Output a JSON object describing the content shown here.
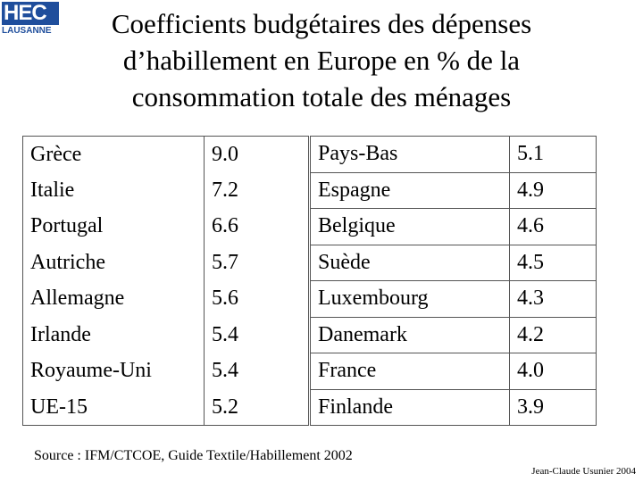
{
  "logo": {
    "name": "HEC",
    "place": "LAUSANNE"
  },
  "header": {
    "title": "Coefficients budgétaires des dépenses d’habillement en Europe en % de la consommation totale des ménages"
  },
  "tables": [
    {
      "rows": [
        [
          "Grèce",
          "9.0"
        ],
        [
          "Italie",
          "7.2"
        ],
        [
          "Portugal",
          "6.6"
        ],
        [
          "Autriche",
          "5.7"
        ],
        [
          "Allemagne",
          "5.6"
        ],
        [
          "Irlande",
          "5.4"
        ],
        [
          "Royaume-Uni",
          "5.4"
        ],
        [
          "UE-15",
          "5.2"
        ]
      ]
    },
    {
      "rows": [
        [
          "Pays-Bas",
          "5.1"
        ],
        [
          "Espagne",
          "4.9"
        ],
        [
          "Belgique",
          "4.6"
        ],
        [
          "Suède",
          "4.5"
        ],
        [
          "Luxembourg",
          "4.3"
        ],
        [
          "Danemark",
          "4.2"
        ],
        [
          "France",
          "4.0"
        ],
        [
          "Finlande",
          "3.9"
        ]
      ]
    }
  ],
  "footer": {
    "source": "Source : IFM/CTCOE, Guide Textile/Habillement 2002",
    "author": "Jean-Claude Usunier 2004"
  }
}
